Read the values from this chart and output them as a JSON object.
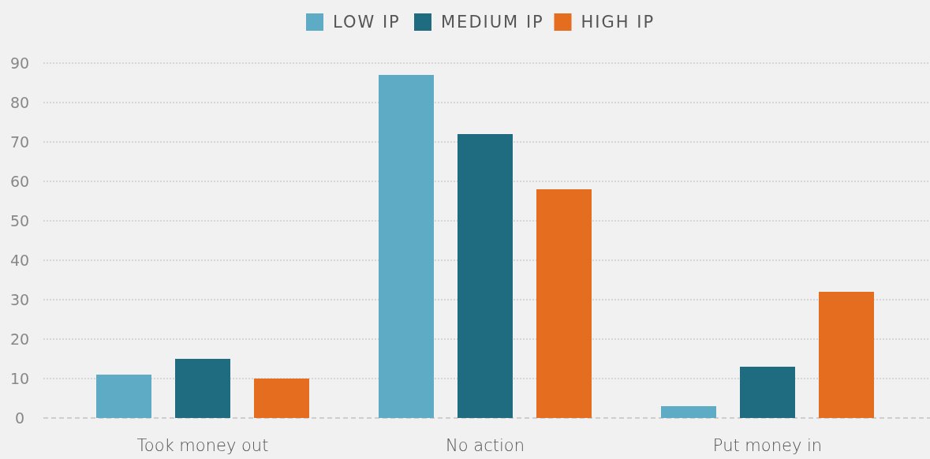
{
  "chart_data": {
    "type": "bar",
    "categories": [
      "Took money out",
      "No action",
      "Put money in"
    ],
    "series": [
      {
        "name": "LOW IP",
        "color": "#5eabc6",
        "values": [
          11,
          87,
          3
        ]
      },
      {
        "name": "MEDIUM IP",
        "color": "#1f6b80",
        "values": [
          15,
          72,
          13
        ]
      },
      {
        "name": "HIGH IP",
        "color": "#e56d1f",
        "values": [
          10,
          58,
          32
        ]
      }
    ],
    "ylim": [
      0,
      90
    ],
    "yticks": [
      0,
      10,
      20,
      30,
      40,
      50,
      60,
      70,
      80,
      90
    ],
    "grid": "y",
    "legend": "top"
  }
}
